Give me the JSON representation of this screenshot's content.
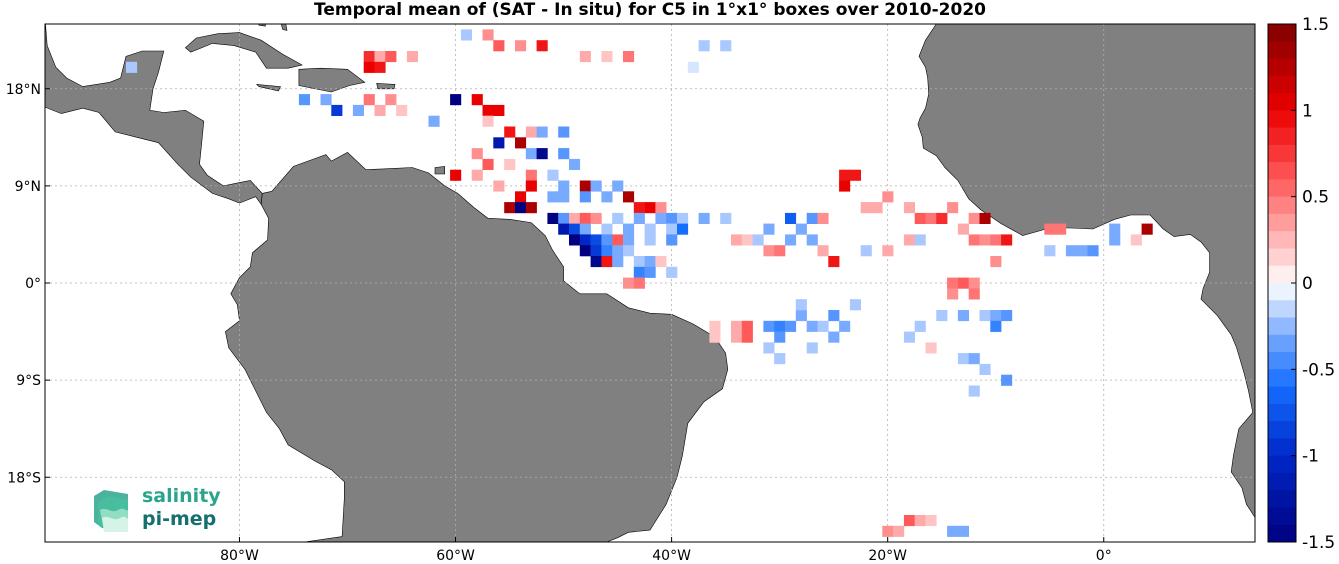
{
  "title": "Temporal mean of (SAT - In situ) for C5 in 1°x1° boxes over 2010-2020",
  "map": {
    "projection": "equirectangular",
    "lon_range": [
      -98,
      14
    ],
    "lat_range": [
      -24,
      24
    ],
    "land_color": "#808080",
    "grid": "dotted"
  },
  "x_ticks": [
    {
      "lon": -80,
      "label": "80°W"
    },
    {
      "lon": -60,
      "label": "60°W"
    },
    {
      "lon": -40,
      "label": "40°W"
    },
    {
      "lon": -20,
      "label": "20°W"
    },
    {
      "lon": 0,
      "label": "0°"
    }
  ],
  "y_ticks": [
    {
      "lat": 18,
      "label": "18°N"
    },
    {
      "lat": 9,
      "label": "9°N"
    },
    {
      "lat": 0,
      "label": "0°"
    },
    {
      "lat": -9,
      "label": "9°S"
    },
    {
      "lat": -18,
      "label": "18°S"
    }
  ],
  "colorbar": {
    "min": -1.5,
    "max": 1.5,
    "ticks": [
      "1.5",
      "1",
      "0.5",
      "0",
      "-0.5",
      "-1",
      "-1.5"
    ],
    "tick_values": [
      1.5,
      1,
      0.5,
      0,
      -0.5,
      -1,
      -1.5
    ]
  },
  "logo": {
    "line1": "salinity",
    "line2": "pi-mep"
  },
  "chart_data": {
    "type": "heatmap",
    "units_note": "",
    "cells": [
      {
        "lon": -68,
        "lat": 21,
        "v": 0.8
      },
      {
        "lon": -67,
        "lat": 21,
        "v": 0.3
      },
      {
        "lon": -66,
        "lat": 21,
        "v": 0.6
      },
      {
        "lon": -64,
        "lat": 21,
        "v": 0.3
      },
      {
        "lon": -68,
        "lat": 20,
        "v": 1.0
      },
      {
        "lon": -67,
        "lat": 20,
        "v": 0.9
      },
      {
        "lon": -59,
        "lat": 23,
        "v": -0.2
      },
      {
        "lon": -57,
        "lat": 23,
        "v": 0.4
      },
      {
        "lon": -56,
        "lat": 22,
        "v": 0.6
      },
      {
        "lon": -54,
        "lat": 22,
        "v": 0.4
      },
      {
        "lon": -52,
        "lat": 22,
        "v": 0.9
      },
      {
        "lon": -48,
        "lat": 21,
        "v": 0.3
      },
      {
        "lon": -46,
        "lat": 21,
        "v": 0.2
      },
      {
        "lon": -44,
        "lat": 21,
        "v": 0.5
      },
      {
        "lon": -38,
        "lat": 20,
        "v": -0.1
      },
      {
        "lon": -37,
        "lat": 22,
        "v": -0.2
      },
      {
        "lon": -35,
        "lat": 22,
        "v": -0.2
      },
      {
        "lon": -90,
        "lat": 20,
        "v": -0.2
      },
      {
        "lon": -74,
        "lat": 17,
        "v": -0.4
      },
      {
        "lon": -72,
        "lat": 17,
        "v": -0.3
      },
      {
        "lon": -68,
        "lat": 17,
        "v": 0.5
      },
      {
        "lon": -66,
        "lat": 17,
        "v": 0.4
      },
      {
        "lon": -71,
        "lat": 16,
        "v": -0.9
      },
      {
        "lon": -69,
        "lat": 16,
        "v": -0.3
      },
      {
        "lon": -67,
        "lat": 16,
        "v": 0.3
      },
      {
        "lon": -65,
        "lat": 16,
        "v": 0.2
      },
      {
        "lon": -62,
        "lat": 15,
        "v": -0.3
      },
      {
        "lon": -60,
        "lat": 17,
        "v": -1.5
      },
      {
        "lon": -58,
        "lat": 17,
        "v": 1.0
      },
      {
        "lon": -57,
        "lat": 16,
        "v": 1.0
      },
      {
        "lon": -56,
        "lat": 16,
        "v": 1.0
      },
      {
        "lon": -57,
        "lat": 15,
        "v": 0.2
      },
      {
        "lon": -55,
        "lat": 14,
        "v": 0.9
      },
      {
        "lon": -53,
        "lat": 14,
        "v": 0.3
      },
      {
        "lon": -52,
        "lat": 14,
        "v": -0.3
      },
      {
        "lon": -50,
        "lat": 14,
        "v": -0.4
      },
      {
        "lon": -56,
        "lat": 13,
        "v": -1.2
      },
      {
        "lon": -54,
        "lat": 13,
        "v": 1.3
      },
      {
        "lon": -53,
        "lat": 12,
        "v": -0.3
      },
      {
        "lon": -52,
        "lat": 12,
        "v": -1.4
      },
      {
        "lon": -50,
        "lat": 12,
        "v": -0.4
      },
      {
        "lon": -49,
        "lat": 11,
        "v": -0.3
      },
      {
        "lon": -58,
        "lat": 12,
        "v": 0.4
      },
      {
        "lon": -57,
        "lat": 11,
        "v": 0.6
      },
      {
        "lon": -55,
        "lat": 11,
        "v": 0.2
      },
      {
        "lon": -60,
        "lat": 10,
        "v": 1.0
      },
      {
        "lon": -58,
        "lat": 10,
        "v": 0.3
      },
      {
        "lon": -56,
        "lat": 9,
        "v": 0.3
      },
      {
        "lon": -53,
        "lat": 10,
        "v": 0.5
      },
      {
        "lon": -53,
        "lat": 9,
        "v": 1.0
      },
      {
        "lon": -51,
        "lat": 10,
        "v": -0.2
      },
      {
        "lon": -50,
        "lat": 9,
        "v": -0.3
      },
      {
        "lon": -48,
        "lat": 9,
        "v": 1.3
      },
      {
        "lon": -47,
        "lat": 9,
        "v": -0.3
      },
      {
        "lon": -45,
        "lat": 9,
        "v": -0.3
      },
      {
        "lon": -54,
        "lat": 8,
        "v": 1.0
      },
      {
        "lon": -55,
        "lat": 7,
        "v": 1.3
      },
      {
        "lon": -54,
        "lat": 7,
        "v": -1.5
      },
      {
        "lon": -53,
        "lat": 7,
        "v": 1.3
      },
      {
        "lon": -51,
        "lat": 8,
        "v": -0.3
      },
      {
        "lon": -50,
        "lat": 8,
        "v": -0.3
      },
      {
        "lon": -48,
        "lat": 8,
        "v": -0.4
      },
      {
        "lon": -46,
        "lat": 8,
        "v": -0.3
      },
      {
        "lon": -44,
        "lat": 8,
        "v": 1.3
      },
      {
        "lon": -43,
        "lat": 7,
        "v": 0.9
      },
      {
        "lon": -42,
        "lat": 7,
        "v": 1.0
      },
      {
        "lon": -41,
        "lat": 7,
        "v": 0.4
      },
      {
        "lon": -51,
        "lat": 6,
        "v": -1.5
      },
      {
        "lon": -50,
        "lat": 6,
        "v": -0.4
      },
      {
        "lon": -49,
        "lat": 6,
        "v": 0.3
      },
      {
        "lon": -48,
        "lat": 6,
        "v": 0.6
      },
      {
        "lon": -47,
        "lat": 6,
        "v": 0.4
      },
      {
        "lon": -45,
        "lat": 6,
        "v": -0.2
      },
      {
        "lon": -43,
        "lat": 6,
        "v": -0.3
      },
      {
        "lon": -41,
        "lat": 6,
        "v": -0.3
      },
      {
        "lon": -40,
        "lat": 6,
        "v": -0.4
      },
      {
        "lon": -39,
        "lat": 6,
        "v": -0.2
      },
      {
        "lon": -37,
        "lat": 6,
        "v": -0.3
      },
      {
        "lon": -35,
        "lat": 6,
        "v": -0.2
      },
      {
        "lon": -50,
        "lat": 5,
        "v": -1.2
      },
      {
        "lon": -49,
        "lat": 5,
        "v": -0.8
      },
      {
        "lon": -48,
        "lat": 5,
        "v": -0.3
      },
      {
        "lon": -46,
        "lat": 5,
        "v": -0.2
      },
      {
        "lon": -44,
        "lat": 5,
        "v": -0.3
      },
      {
        "lon": -42,
        "lat": 5,
        "v": -0.2
      },
      {
        "lon": -40,
        "lat": 5,
        "v": -0.2
      },
      {
        "lon": -39,
        "lat": 5,
        "v": -0.6
      },
      {
        "lon": -49,
        "lat": 4,
        "v": -1.5
      },
      {
        "lon": -48,
        "lat": 4,
        "v": -1.0
      },
      {
        "lon": -47,
        "lat": 4,
        "v": -0.8
      },
      {
        "lon": -46,
        "lat": 4,
        "v": -0.4
      },
      {
        "lon": -45,
        "lat": 4,
        "v": 0.6
      },
      {
        "lon": -44,
        "lat": 4,
        "v": -0.3
      },
      {
        "lon": -42,
        "lat": 4,
        "v": -0.2
      },
      {
        "lon": -40,
        "lat": 4,
        "v": -0.4
      },
      {
        "lon": -48,
        "lat": 3,
        "v": -1.5
      },
      {
        "lon": -47,
        "lat": 3,
        "v": -0.9
      },
      {
        "lon": -46,
        "lat": 3,
        "v": -0.5
      },
      {
        "lon": -45,
        "lat": 3,
        "v": -0.3
      },
      {
        "lon": -44,
        "lat": 3,
        "v": -0.2
      },
      {
        "lon": -47,
        "lat": 2,
        "v": -1.4
      },
      {
        "lon": -46,
        "lat": 2,
        "v": 0.9
      },
      {
        "lon": -45,
        "lat": 2,
        "v": -0.3
      },
      {
        "lon": -43,
        "lat": 2,
        "v": -0.2
      },
      {
        "lon": -42,
        "lat": 2,
        "v": -0.3
      },
      {
        "lon": -41,
        "lat": 2,
        "v": 0.2
      },
      {
        "lon": -43,
        "lat": 1,
        "v": -0.5
      },
      {
        "lon": -42,
        "lat": 1,
        "v": -0.4
      },
      {
        "lon": -40,
        "lat": 1,
        "v": -0.2
      },
      {
        "lon": -44,
        "lat": 0,
        "v": 0.4
      },
      {
        "lon": -43,
        "lat": 0,
        "v": 0.5
      },
      {
        "lon": -34,
        "lat": 4,
        "v": 0.3
      },
      {
        "lon": -33,
        "lat": 4,
        "v": 0.2
      },
      {
        "lon": -32,
        "lat": 4,
        "v": -0.2
      },
      {
        "lon": -31,
        "lat": 5,
        "v": -0.3
      },
      {
        "lon": -31,
        "lat": 3,
        "v": 0.4
      },
      {
        "lon": -30,
        "lat": 3,
        "v": 0.5
      },
      {
        "lon": -29,
        "lat": 4,
        "v": -0.3
      },
      {
        "lon": -29,
        "lat": 6,
        "v": -0.7
      },
      {
        "lon": -28,
        "lat": 5,
        "v": -0.3
      },
      {
        "lon": -27,
        "lat": 6,
        "v": -0.4
      },
      {
        "lon": -26,
        "lat": 6,
        "v": 0.4
      },
      {
        "lon": -27,
        "lat": 4,
        "v": -0.3
      },
      {
        "lon": -26,
        "lat": 3,
        "v": 0.3
      },
      {
        "lon": -25,
        "lat": 2,
        "v": 0.9
      },
      {
        "lon": -23,
        "lat": 10,
        "v": 0.9
      },
      {
        "lon": -24,
        "lat": 10,
        "v": 0.9
      },
      {
        "lon": -24,
        "lat": 9,
        "v": 1.0
      },
      {
        "lon": -22,
        "lat": 7,
        "v": 0.3
      },
      {
        "lon": -21,
        "lat": 7,
        "v": 0.3
      },
      {
        "lon": -20,
        "lat": 8,
        "v": 0.4
      },
      {
        "lon": -18,
        "lat": 7,
        "v": 0.3
      },
      {
        "lon": -17,
        "lat": 6,
        "v": 0.6
      },
      {
        "lon": -16,
        "lat": 6,
        "v": 0.5
      },
      {
        "lon": -15,
        "lat": 6,
        "v": 0.8
      },
      {
        "lon": -14,
        "lat": 7,
        "v": 0.4
      },
      {
        "lon": -12,
        "lat": 6,
        "v": 0.4
      },
      {
        "lon": -11,
        "lat": 6,
        "v": 1.3
      },
      {
        "lon": -13,
        "lat": 5,
        "v": 0.3
      },
      {
        "lon": -12,
        "lat": 4,
        "v": 0.5
      },
      {
        "lon": -11,
        "lat": 4,
        "v": 0.4
      },
      {
        "lon": -10,
        "lat": 4,
        "v": 0.5
      },
      {
        "lon": -9,
        "lat": 4,
        "v": 0.9
      },
      {
        "lon": -5,
        "lat": 5,
        "v": 0.5
      },
      {
        "lon": -4,
        "lat": 5,
        "v": 0.5
      },
      {
        "lon": 1,
        "lat": 5,
        "v": -0.3
      },
      {
        "lon": 3,
        "lat": 4,
        "v": 0.2
      },
      {
        "lon": 4,
        "lat": 5,
        "v": 1.3
      },
      {
        "lon": -18,
        "lat": 4,
        "v": 0.3
      },
      {
        "lon": -17,
        "lat": 4,
        "v": -0.2
      },
      {
        "lon": -22,
        "lat": 3,
        "v": -0.2
      },
      {
        "lon": -20,
        "lat": 3,
        "v": 0.3
      },
      {
        "lon": -10,
        "lat": 2,
        "v": 0.4
      },
      {
        "lon": -5,
        "lat": 3,
        "v": -0.2
      },
      {
        "lon": -3,
        "lat": 3,
        "v": -0.3
      },
      {
        "lon": -2,
        "lat": 3,
        "v": -0.3
      },
      {
        "lon": -1,
        "lat": 3,
        "v": -0.4
      },
      {
        "lon": 1,
        "lat": 4,
        "v": -0.3
      },
      {
        "lon": -14,
        "lat": 0,
        "v": 0.5
      },
      {
        "lon": -13,
        "lat": 0,
        "v": 0.6
      },
      {
        "lon": -12,
        "lat": 0,
        "v": 0.4
      },
      {
        "lon": -14,
        "lat": -1,
        "v": 0.4
      },
      {
        "lon": -12,
        "lat": -1,
        "v": 0.5
      },
      {
        "lon": -15,
        "lat": -3,
        "v": -0.2
      },
      {
        "lon": -13,
        "lat": -3,
        "v": -0.3
      },
      {
        "lon": -11,
        "lat": -3,
        "v": -0.2
      },
      {
        "lon": -10,
        "lat": -3,
        "v": -0.3
      },
      {
        "lon": -9,
        "lat": -3,
        "v": -0.4
      },
      {
        "lon": -17,
        "lat": -4,
        "v": -0.2
      },
      {
        "lon": -10,
        "lat": -4,
        "v": -0.5
      },
      {
        "lon": -18,
        "lat": -5,
        "v": -0.2
      },
      {
        "lon": -16,
        "lat": -6,
        "v": 0.2
      },
      {
        "lon": -13,
        "lat": -7,
        "v": -0.2
      },
      {
        "lon": -12,
        "lat": -7,
        "v": -0.3
      },
      {
        "lon": -11,
        "lat": -8,
        "v": -0.2
      },
      {
        "lon": -9,
        "lat": -9,
        "v": -0.4
      },
      {
        "lon": -12,
        "lat": -10,
        "v": -0.2
      },
      {
        "lon": -36,
        "lat": -4,
        "v": 0.2
      },
      {
        "lon": -34,
        "lat": -4,
        "v": 0.3
      },
      {
        "lon": -34,
        "lat": -5,
        "v": 0.3
      },
      {
        "lon": -33,
        "lat": -4,
        "v": 0.6
      },
      {
        "lon": -33,
        "lat": -5,
        "v": 0.6
      },
      {
        "lon": -31,
        "lat": -4,
        "v": -0.4
      },
      {
        "lon": -30,
        "lat": -4,
        "v": -0.5
      },
      {
        "lon": -29,
        "lat": -4,
        "v": -0.4
      },
      {
        "lon": -30,
        "lat": -5,
        "v": -0.4
      },
      {
        "lon": -31,
        "lat": -6,
        "v": -0.2
      },
      {
        "lon": -28,
        "lat": -3,
        "v": -0.3
      },
      {
        "lon": -27,
        "lat": -4,
        "v": -0.3
      },
      {
        "lon": -26,
        "lat": -4,
        "v": -0.2
      },
      {
        "lon": -25,
        "lat": -3,
        "v": -0.4
      },
      {
        "lon": -24,
        "lat": -4,
        "v": -0.3
      },
      {
        "lon": -25,
        "lat": -5,
        "v": -0.3
      },
      {
        "lon": -23,
        "lat": -2,
        "v": -0.2
      },
      {
        "lon": -28,
        "lat": -2,
        "v": -0.2
      },
      {
        "lon": -30,
        "lat": -7,
        "v": -0.2
      },
      {
        "lon": -27,
        "lat": -6,
        "v": -0.2
      },
      {
        "lon": -36,
        "lat": -5,
        "v": 0.2
      },
      {
        "lon": -20,
        "lat": -23,
        "v": 0.4
      },
      {
        "lon": -19,
        "lat": -23,
        "v": 0.3
      },
      {
        "lon": -18,
        "lat": -22,
        "v": 0.6
      },
      {
        "lon": -17,
        "lat": -22,
        "v": 0.3
      },
      {
        "lon": -16,
        "lat": -22,
        "v": 0.2
      },
      {
        "lon": -14,
        "lat": -23,
        "v": -0.3
      },
      {
        "lon": -13,
        "lat": -23,
        "v": -0.3
      }
    ]
  }
}
